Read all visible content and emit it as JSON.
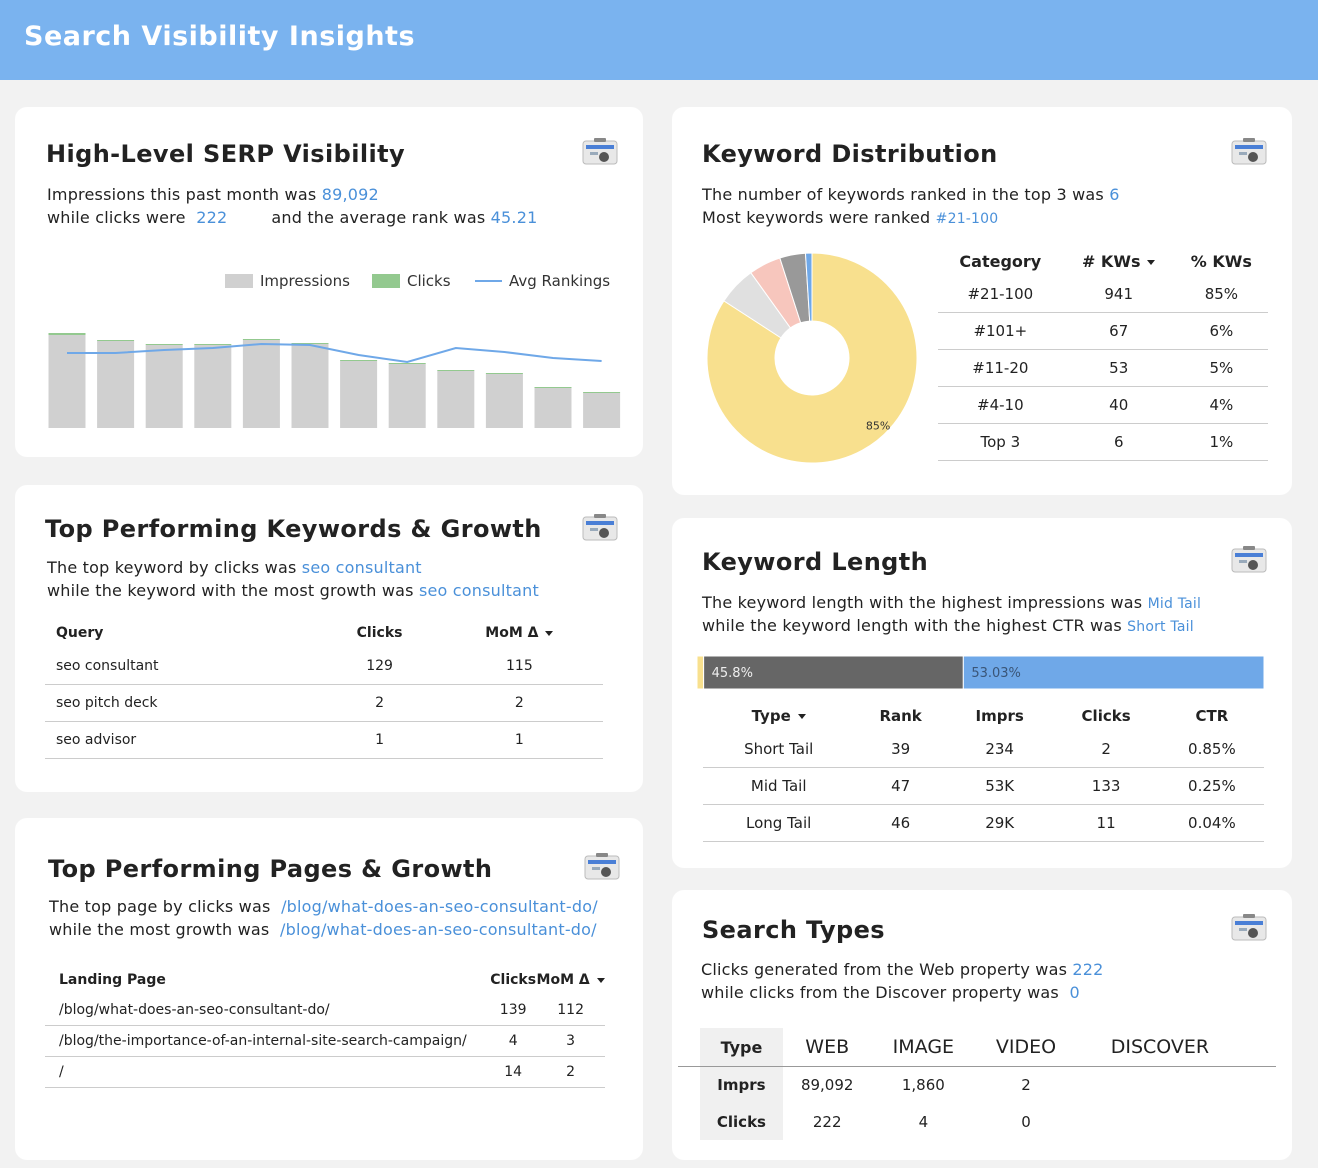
{
  "header": {
    "title": "Search Visibility Insights"
  },
  "serp": {
    "title": "High-Level SERP Visibility",
    "text": [
      "Impressions this past month was",
      "89,092",
      "while clicks were",
      "222",
      "and the average rank was",
      "45.21"
    ]
  },
  "keywords": {
    "title": "Top Performing Keywords & Growth",
    "text": [
      "The top keyword by clicks was",
      "seo consultant",
      "while the keyword with the most growth was",
      "seo consultant"
    ],
    "table": {
      "headers": [
        "Query",
        "Clicks",
        "MoM Δ"
      ],
      "rows": [
        [
          "seo consultant",
          129,
          115
        ],
        [
          "seo pitch deck",
          2,
          2
        ],
        [
          "seo advisor",
          1,
          1
        ]
      ]
    }
  },
  "pages": {
    "title": "Top Performing Pages & Growth",
    "text": [
      "The top page by clicks was",
      "/blog/what-does-an-seo-consultant-do/",
      "while the most growth was",
      "/blog/what-does-an-seo-consultant-do/"
    ],
    "table": {
      "headers": [
        "Landing Page",
        "Clicks",
        "MoM Δ"
      ],
      "rows": [
        [
          "/blog/what-does-an-seo-consultant-do/",
          139,
          112
        ],
        [
          "/blog/the-importance-of-an-internal-site-search-campaign/",
          4,
          3
        ],
        [
          "/",
          14,
          2
        ]
      ]
    }
  },
  "distribution": {
    "title": "Keyword Distribution",
    "text": [
      "The number of keywords ranked in the top 3 was",
      "6",
      "Most keywords were ranked",
      "#21-100"
    ],
    "table": {
      "headers": [
        "Category",
        "# KWs",
        "% KWs"
      ],
      "rows": [
        [
          "#21-100",
          941,
          "85%"
        ],
        [
          "#101+",
          67,
          "6%"
        ],
        [
          "#11-20",
          53,
          "5%"
        ],
        [
          "#4-10",
          40,
          "4%"
        ],
        [
          "Top 3",
          6,
          "1%"
        ]
      ]
    }
  },
  "length": {
    "title": "Keyword Length",
    "text": [
      "The keyword length with the highest impressions was",
      "Mid Tail",
      "while the keyword length with the highest CTR was",
      "Short Tail"
    ],
    "table": {
      "headers": [
        "Type",
        "Rank",
        "Imprs",
        "Clicks",
        "CTR"
      ],
      "rows": [
        [
          "Short Tail",
          39,
          234,
          2,
          "0.85%"
        ],
        [
          "Mid Tail",
          47,
          "53K",
          133,
          "0.25%"
        ],
        [
          "Long Tail",
          46,
          "29K",
          11,
          "0.04%"
        ]
      ]
    }
  },
  "search_types": {
    "title": "Search Types",
    "text": [
      "Clicks generated from the Web property was",
      "222",
      "while clicks from the Discover property was",
      "0"
    ],
    "table": {
      "headers": [
        "Type",
        "WEB",
        "IMAGE",
        "VIDEO",
        "DISCOVER"
      ],
      "rows": [
        [
          "Imprs",
          "89,092",
          "1,860",
          2,
          null
        ],
        [
          "Clicks",
          222,
          4,
          0,
          null
        ]
      ]
    }
  },
  "chart_data": [
    {
      "type": "bar",
      "series": [
        {
          "name": "Impressions",
          "color": "#d0d0d0",
          "values": [
            93,
            87,
            83,
            83,
            88,
            84,
            67,
            64,
            57,
            54,
            40,
            35
          ]
        },
        {
          "name": "Clicks",
          "color": "#93c98f",
          "values": [
            2,
            1,
            1,
            1,
            1,
            1,
            1,
            1,
            1,
            1,
            1,
            1
          ]
        },
        {
          "name": "Avg Rankings",
          "type": "line",
          "color": "#6fa8e8",
          "values": [
            75,
            75,
            78,
            80,
            84,
            83,
            73,
            66,
            80,
            76,
            70,
            67
          ]
        }
      ]
    },
    {
      "type": "pie",
      "values": [
        85,
        6,
        5,
        4,
        1
      ],
      "value_labels": [
        "85%",
        null,
        null,
        null,
        null
      ],
      "colors": [
        "#f8e08e",
        "#e0e0e0",
        "#f7c6bd",
        "#999999",
        "#6fa8e8"
      ]
    },
    {
      "type": "stacked_bar",
      "values": [
        1.17,
        45.8,
        53.03
      ],
      "value_labels": [
        null,
        "45.8%",
        "53.03%"
      ],
      "colors": [
        "#f8e08e",
        "#666666",
        "#6fa8e8"
      ],
      "xlim": [
        0,
        100
      ]
    }
  ]
}
